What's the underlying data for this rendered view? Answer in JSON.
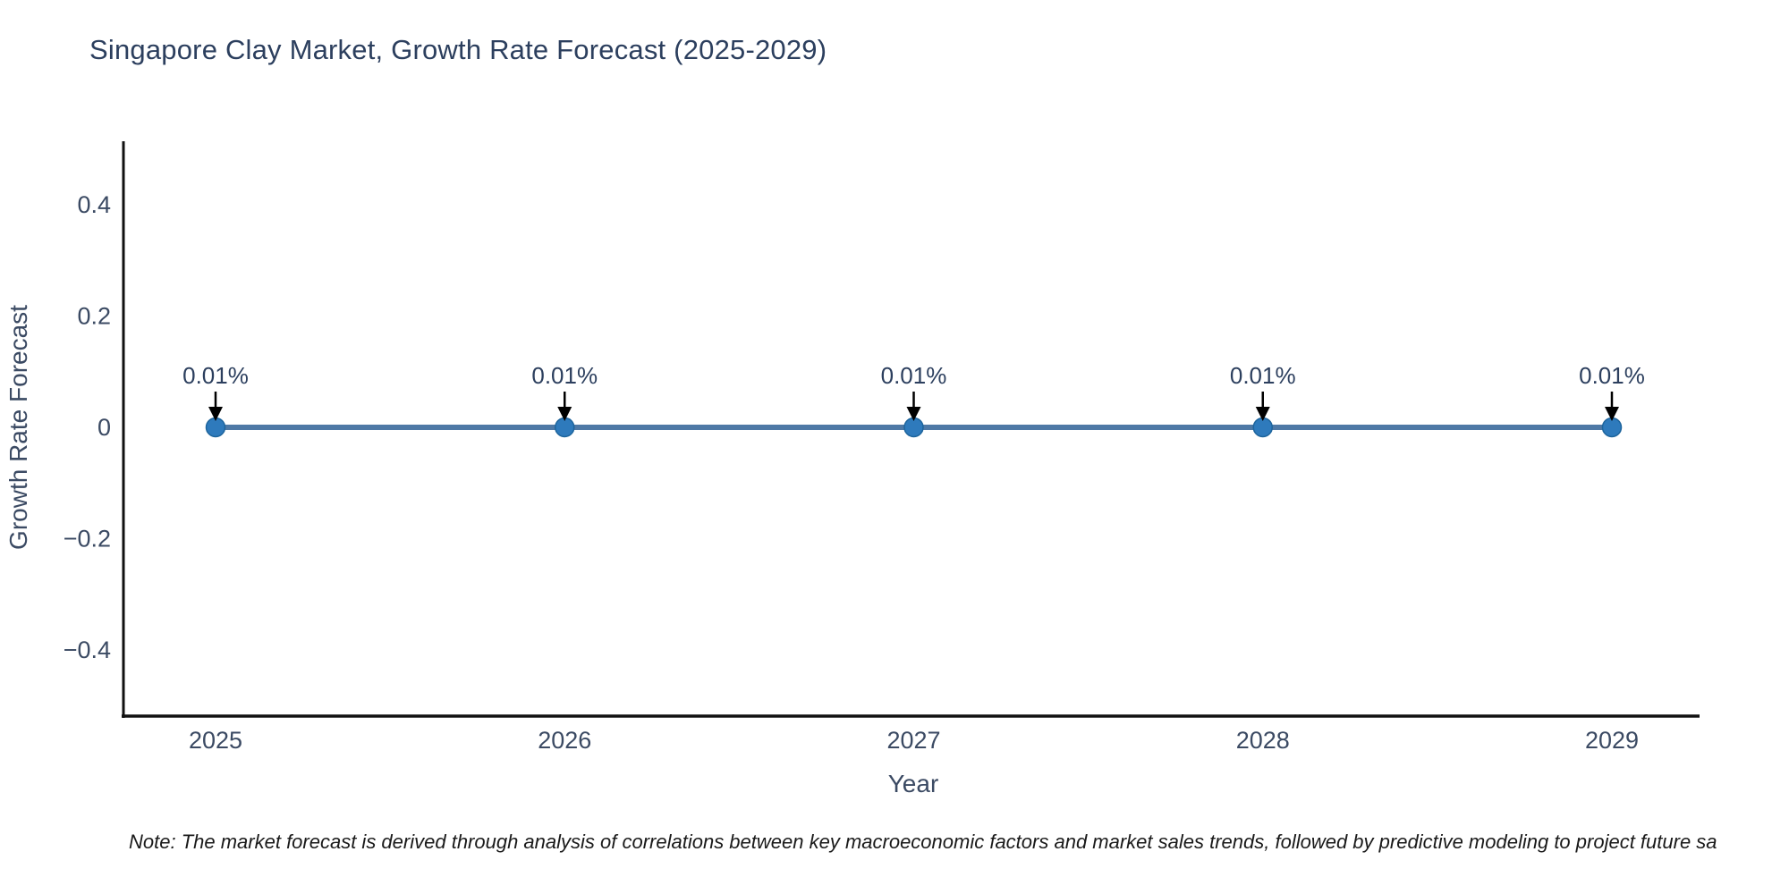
{
  "page": {
    "background_color": "#ffffff"
  },
  "chart": {
    "title": "Singapore Clay Market, Growth Rate Forecast (2025-2029)",
    "note": "Note: The market forecast is derived through analysis of correlations between key macroeconomic factors and market sales trends, followed by predictive modeling to project future sa"
  },
  "chart_data": {
    "type": "line",
    "title": "Singapore Clay Market, Growth Rate Forecast (2025-2029)",
    "xlabel": "Year",
    "ylabel": "Growth Rate Forecast",
    "categories": [
      "2025",
      "2026",
      "2027",
      "2028",
      "2029"
    ],
    "series": [
      {
        "name": "Growth Rate Forecast",
        "values_percent": [
          0.01,
          0.01,
          0.01,
          0.01,
          0.01
        ]
      }
    ],
    "point_labels": [
      "0.01%",
      "0.01%",
      "0.01%",
      "0.01%",
      "0.01%"
    ],
    "y_ticks": [
      "0.4",
      "0.2",
      "0",
      "−0.2",
      "−0.4"
    ],
    "y_tick_values": [
      0.4,
      0.2,
      0,
      -0.2,
      -0.4
    ],
    "ylim": [
      -0.5,
      0.5
    ],
    "grid": false,
    "legend": false,
    "annotation_arrows": "down-arrow-to-point",
    "colors": {
      "line": "#4e79a6",
      "marker_fill": "#2e7abc",
      "marker_edge": "#1d649c",
      "axis_line": "#111111",
      "chart_text": "#2c3f5e",
      "tick_text": "#3b4a63",
      "arrow": "#000000",
      "note_text": "#1a1a1a",
      "background": "#ffffff"
    }
  }
}
